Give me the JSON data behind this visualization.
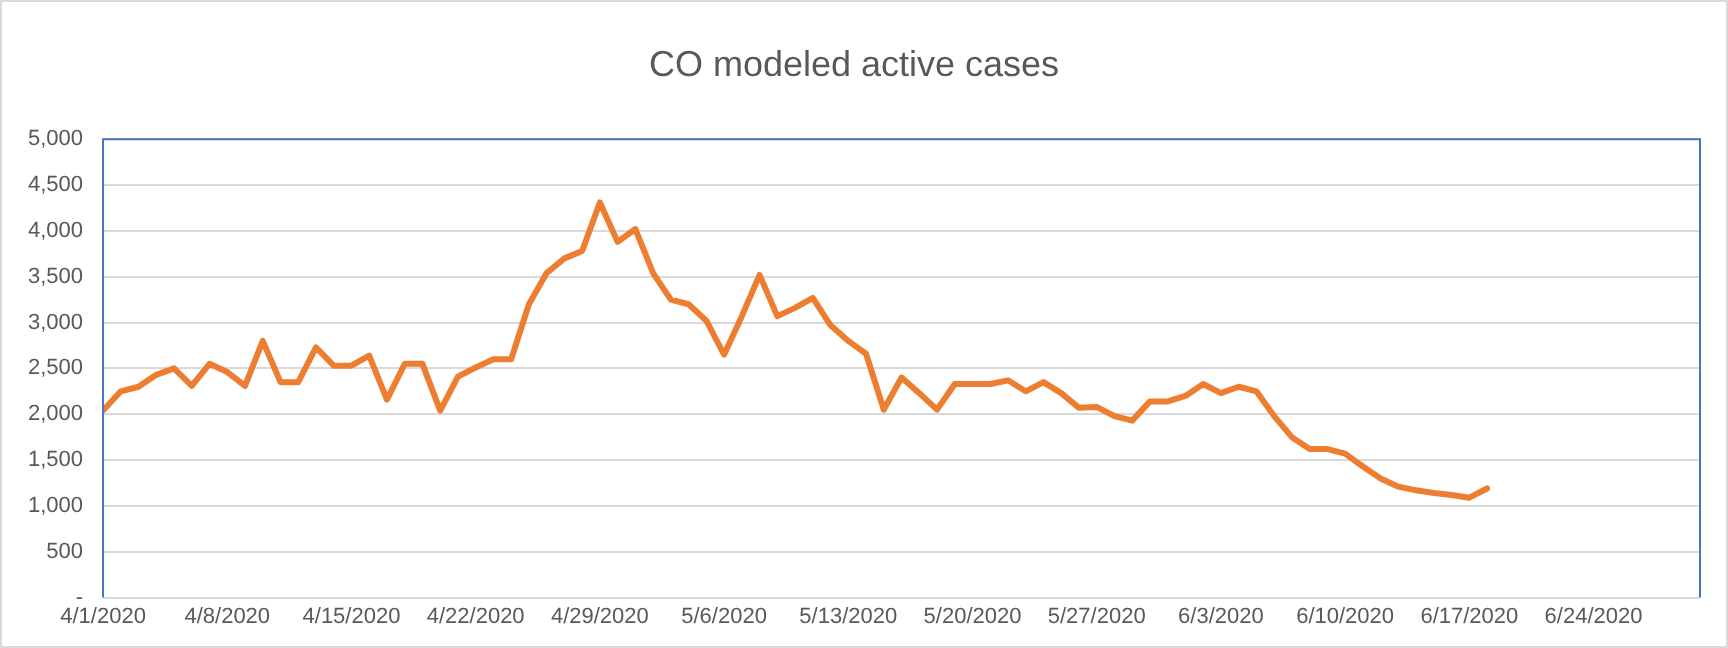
{
  "chart_data": {
    "type": "line",
    "title": "CO modeled active cases",
    "x": [
      "2020-04-01",
      "2020-04-02",
      "2020-04-03",
      "2020-04-04",
      "2020-04-05",
      "2020-04-06",
      "2020-04-07",
      "2020-04-08",
      "2020-04-09",
      "2020-04-10",
      "2020-04-11",
      "2020-04-12",
      "2020-04-13",
      "2020-04-14",
      "2020-04-15",
      "2020-04-16",
      "2020-04-17",
      "2020-04-18",
      "2020-04-19",
      "2020-04-20",
      "2020-04-21",
      "2020-04-22",
      "2020-04-23",
      "2020-04-24",
      "2020-04-25",
      "2020-04-26",
      "2020-04-27",
      "2020-04-28",
      "2020-04-29",
      "2020-04-30",
      "2020-05-01",
      "2020-05-02",
      "2020-05-03",
      "2020-05-04",
      "2020-05-05",
      "2020-05-06",
      "2020-05-07",
      "2020-05-08",
      "2020-05-09",
      "2020-05-10",
      "2020-05-11",
      "2020-05-12",
      "2020-05-13",
      "2020-05-14",
      "2020-05-15",
      "2020-05-16",
      "2020-05-17",
      "2020-05-18",
      "2020-05-19",
      "2020-05-20",
      "2020-05-21",
      "2020-05-22",
      "2020-05-23",
      "2020-05-24",
      "2020-05-25",
      "2020-05-26",
      "2020-05-27",
      "2020-05-28",
      "2020-05-29",
      "2020-05-30",
      "2020-05-31",
      "2020-06-01",
      "2020-06-02",
      "2020-06-03",
      "2020-06-04",
      "2020-06-05",
      "2020-06-06",
      "2020-06-07",
      "2020-06-08",
      "2020-06-09",
      "2020-06-10",
      "2020-06-11",
      "2020-06-12",
      "2020-06-13",
      "2020-06-14",
      "2020-06-15",
      "2020-06-16",
      "2020-06-17",
      "2020-06-18"
    ],
    "series": [
      {
        "color": "#ed7d31",
        "values": [
          2040,
          2250,
          2300,
          2430,
          2500,
          2310,
          2550,
          2460,
          2310,
          2800,
          2350,
          2350,
          2730,
          2530,
          2530,
          2640,
          2160,
          2550,
          2550,
          2040,
          2410,
          2510,
          2600,
          2600,
          3200,
          3540,
          3700,
          3780,
          4310,
          3880,
          4020,
          3540,
          3250,
          3200,
          3020,
          2650,
          3070,
          3520,
          3070,
          3160,
          3270,
          2970,
          2800,
          2660,
          2050,
          2400,
          2230,
          2050,
          2330,
          2330,
          2330,
          2370,
          2250,
          2350,
          2230,
          2070,
          2080,
          1980,
          1930,
          2140,
          2140,
          2200,
          2330,
          2230,
          2300,
          2250,
          1980,
          1750,
          1620,
          1620,
          1570,
          1430,
          1300,
          1210,
          1170,
          1140,
          1120,
          1090,
          1190
        ]
      }
    ],
    "xlim": [
      "2020-04-01",
      "2020-06-30"
    ],
    "xticks": [
      {
        "value": "2020-04-01",
        "label": "4/1/2020"
      },
      {
        "value": "2020-04-08",
        "label": "4/8/2020"
      },
      {
        "value": "2020-04-15",
        "label": "4/15/2020"
      },
      {
        "value": "2020-04-22",
        "label": "4/22/2020"
      },
      {
        "value": "2020-04-29",
        "label": "4/29/2020"
      },
      {
        "value": "2020-05-06",
        "label": "5/6/2020"
      },
      {
        "value": "2020-05-13",
        "label": "5/13/2020"
      },
      {
        "value": "2020-05-20",
        "label": "5/20/2020"
      },
      {
        "value": "2020-05-27",
        "label": "5/27/2020"
      },
      {
        "value": "2020-06-03",
        "label": "6/3/2020"
      },
      {
        "value": "2020-06-10",
        "label": "6/10/2020"
      },
      {
        "value": "2020-06-17",
        "label": "6/17/2020"
      },
      {
        "value": "2020-06-24",
        "label": "6/24/2020"
      }
    ],
    "ylim": [
      0,
      5000
    ],
    "yticks": [
      {
        "value": 0,
        "label": "-"
      },
      500,
      {
        "value": 1000,
        "label": "1,000"
      },
      {
        "value": 1500,
        "label": "1,500"
      },
      {
        "value": 2000,
        "label": "2,000"
      },
      {
        "value": 2500,
        "label": "2,500"
      },
      {
        "value": 3000,
        "label": "3,000"
      },
      {
        "value": 3500,
        "label": "3,500"
      },
      {
        "value": 4000,
        "label": "4,000"
      },
      {
        "value": 4500,
        "label": "4,500"
      },
      {
        "value": 5000,
        "label": "5,000"
      }
    ],
    "grid": "y",
    "legend": false,
    "marker": "none",
    "line_style": "solid"
  }
}
